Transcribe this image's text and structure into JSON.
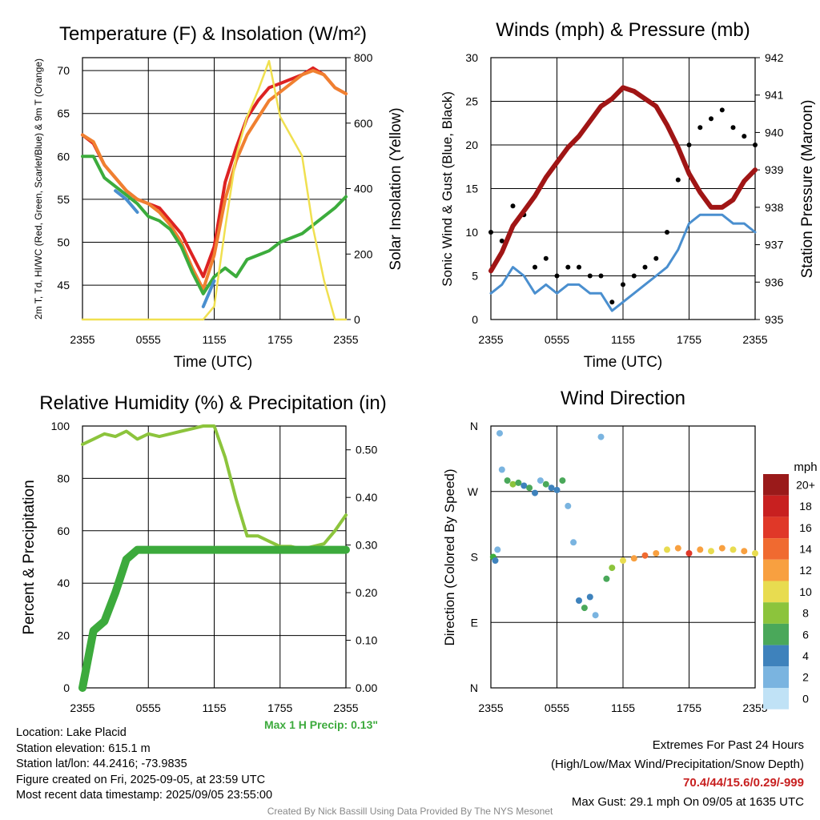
{
  "chart_data": [
    {
      "type": "line",
      "title": "Temperature (F) & Insolation (W/m²)",
      "xlabel": "Time (UTC)",
      "ylabel": "2m T, Td, HI/WC (Red, Green, Scarlet/Blue) & 9m T (Orange)",
      "y2label": "Solar Insolation (Yellow)",
      "xticks": [
        "2355",
        "0555",
        "1155",
        "1755",
        "2355"
      ],
      "yticks": [
        45,
        50,
        55,
        60,
        65,
        70
      ],
      "y2ticks": [
        0,
        200,
        400,
        600,
        800
      ],
      "ylim": [
        41,
        71.5
      ],
      "y2lim": [
        0,
        800
      ],
      "x_hours": [
        0,
        1,
        2,
        3,
        4,
        5,
        6,
        7,
        8,
        9,
        10,
        11,
        12,
        13,
        14,
        15,
        16,
        17,
        18,
        19,
        20,
        21,
        22,
        23,
        24
      ],
      "series": [
        {
          "color": "#dd2222",
          "values": [
            62.5,
            61.5,
            59,
            57.5,
            56,
            55,
            54.5,
            54,
            52.5,
            51,
            48.5,
            46,
            49.5,
            57,
            61,
            64.5,
            66.5,
            68,
            68.5,
            69,
            69.5,
            70.3,
            69.5,
            68,
            67.3
          ]
        },
        {
          "color": "#f08030",
          "values": [
            62.5,
            61.7,
            59,
            57.5,
            56,
            55,
            54.5,
            53.5,
            52,
            50,
            47,
            44.5,
            48.5,
            55,
            59.5,
            62.5,
            64.5,
            66.5,
            67.5,
            68.5,
            69.5,
            70,
            69.5,
            68,
            67.3
          ]
        },
        {
          "color": "#3cac3c",
          "values": [
            60,
            60,
            57.5,
            56.5,
            55.5,
            54.5,
            53,
            52.5,
            51.5,
            49.5,
            46.5,
            44,
            46,
            47,
            46,
            48,
            48.5,
            49,
            50,
            50.5,
            51,
            52,
            53,
            54,
            55.3
          ]
        },
        {
          "color": "#4a8fcf",
          "values": [
            null,
            null,
            null,
            56,
            55,
            53.5,
            null,
            null,
            null,
            null,
            null,
            42.5,
            45.5,
            null,
            null,
            null,
            null,
            null,
            null,
            null,
            null,
            null,
            null,
            null,
            null
          ]
        },
        {
          "color": "#f0e050",
          "y_axis": "right",
          "values": [
            0,
            0,
            0,
            0,
            0,
            0,
            0,
            0,
            0,
            0,
            0,
            0,
            40,
            280,
            500,
            620,
            700,
            790,
            620,
            560,
            500,
            280,
            120,
            0,
            0
          ]
        }
      ]
    },
    {
      "type": "scatter",
      "title": "Winds (mph) & Pressure (mb)",
      "xlabel": "Time (UTC)",
      "ylabel": "Sonic Wind & Gust (Blue, Black)",
      "y2label": "Station Pressure (Maroon)",
      "xticks": [
        "2355",
        "0555",
        "1155",
        "1755",
        "2355"
      ],
      "yticks": [
        0,
        5,
        10,
        15,
        20,
        25,
        30
      ],
      "y2ticks": [
        935,
        936,
        937,
        938,
        939,
        940,
        941,
        942
      ],
      "ylim": [
        0,
        30
      ],
      "y2lim": [
        935,
        942
      ],
      "x_hours": [
        0,
        1,
        2,
        3,
        4,
        5,
        6,
        7,
        8,
        9,
        10,
        11,
        12,
        13,
        14,
        15,
        16,
        17,
        18,
        19,
        20,
        21,
        22,
        23,
        24
      ],
      "series": [
        {
          "color": "#4a8fcf",
          "values": [
            3,
            4,
            6,
            5,
            3,
            4,
            3,
            4,
            4,
            3,
            3,
            1,
            2,
            3,
            4,
            5,
            6,
            8,
            11,
            12,
            12,
            12,
            11,
            11,
            10
          ]
        },
        {
          "color": "#000000",
          "values": [
            10,
            9,
            13,
            12,
            6,
            7,
            5,
            6,
            6,
            5,
            5,
            2,
            4,
            5,
            6,
            7,
            10,
            16,
            20,
            22,
            23,
            24,
            22,
            21,
            20
          ]
        },
        {
          "color": "#a01515",
          "y_axis": "right",
          "values": [
            936.3,
            936.8,
            937.5,
            937.9,
            938.3,
            938.8,
            939.2,
            939.6,
            939.9,
            940.3,
            940.7,
            940.9,
            941.2,
            941.1,
            940.9,
            940.7,
            940.2,
            939.6,
            938.9,
            938.4,
            938.0,
            938.0,
            938.2,
            938.7,
            939.0
          ]
        }
      ]
    },
    {
      "type": "line",
      "title": "Relative Humidity (%) & Precipitation (in)",
      "ylabel": "Percent & Precipitation",
      "xticks": [
        "2355",
        "0555",
        "1155",
        "1755",
        "2355"
      ],
      "yticks": [
        0,
        20,
        40,
        60,
        80,
        100
      ],
      "y2ticks": [
        "0.00",
        "0.10",
        "0.20",
        "0.30",
        "0.40",
        "0.50"
      ],
      "ylim": [
        0,
        100
      ],
      "y2lim": [
        0,
        0.55
      ],
      "x_hours": [
        0,
        1,
        2,
        3,
        4,
        5,
        6,
        7,
        8,
        9,
        10,
        11,
        12,
        13,
        14,
        15,
        16,
        17,
        18,
        19,
        20,
        21,
        22,
        23,
        24
      ],
      "series": [
        {
          "color": "#8cc43c",
          "values": [
            93,
            95,
            97,
            96,
            98,
            95,
            97,
            96,
            97,
            98,
            99,
            100,
            100,
            88,
            72,
            58,
            58,
            56,
            54,
            54,
            53,
            54,
            55,
            60,
            66
          ]
        },
        {
          "color": "#3caa3c",
          "y_axis": "right",
          "values": [
            0,
            0.12,
            0.14,
            0.2,
            0.27,
            0.29,
            0.29,
            0.29,
            0.29,
            0.29,
            0.29,
            0.29,
            0.29,
            0.29,
            0.29,
            0.29,
            0.29,
            0.29,
            0.29,
            0.29,
            0.29,
            0.29,
            0.29,
            0.29,
            0.29
          ]
        }
      ],
      "annotation": "Max 1 H Precip: 0.13\""
    },
    {
      "type": "scatter",
      "title": "Wind Direction",
      "ylabel": "Direction (Colored By Speed)",
      "xticks": [
        "2355",
        "0555",
        "1155",
        "1755",
        "2355"
      ],
      "yticks": [
        "N",
        "E",
        "S",
        "W",
        "N"
      ],
      "ylim": [
        0,
        360
      ],
      "colorbar_title": "mph",
      "colorbar_labels": [
        "20+",
        "18",
        "16",
        "14",
        "12",
        "10",
        "8",
        "6",
        "4",
        "2",
        "0"
      ],
      "colorbar_colors": [
        "#9a1a1a",
        "#c82020",
        "#e03828",
        "#f06a30",
        "#f8a040",
        "#e8dc50",
        "#8cc43c",
        "#4aa85a",
        "#3e82bc",
        "#7ab4e0",
        "#c0e2f6"
      ],
      "points": [
        [
          0.2,
          180,
          "#3cac3c"
        ],
        [
          0.4,
          175,
          "#3e82bc"
        ],
        [
          0.6,
          190,
          "#7ab4e0"
        ],
        [
          0.8,
          350,
          "#7ab4e0"
        ],
        [
          1.0,
          300,
          "#7ab4e0"
        ],
        [
          1.5,
          285,
          "#4aa85a"
        ],
        [
          2.0,
          280,
          "#8cc43c"
        ],
        [
          2.5,
          282,
          "#4aa85a"
        ],
        [
          3.0,
          278,
          "#3e82bc"
        ],
        [
          3.5,
          275,
          "#4aa85a"
        ],
        [
          4.0,
          268,
          "#3e82bc"
        ],
        [
          4.5,
          285,
          "#7ab4e0"
        ],
        [
          5.0,
          280,
          "#4aa85a"
        ],
        [
          5.5,
          275,
          "#3e82bc"
        ],
        [
          6.0,
          272,
          "#3e82bc"
        ],
        [
          6.5,
          285,
          "#4aa85a"
        ],
        [
          7.0,
          250,
          "#7ab4e0"
        ],
        [
          7.5,
          200,
          "#7ab4e0"
        ],
        [
          8.0,
          120,
          "#3e82bc"
        ],
        [
          8.5,
          110,
          "#4aa85a"
        ],
        [
          9.0,
          125,
          "#3e82bc"
        ],
        [
          9.5,
          100,
          "#7ab4e0"
        ],
        [
          10.0,
          345,
          "#7ab4e0"
        ],
        [
          10.5,
          150,
          "#4aa85a"
        ],
        [
          11.0,
          165,
          "#8cc43c"
        ],
        [
          12.0,
          175,
          "#e8dc50"
        ],
        [
          13.0,
          178,
          "#f8a040"
        ],
        [
          14.0,
          182,
          "#f06a30"
        ],
        [
          15.0,
          185,
          "#f8a040"
        ],
        [
          16.0,
          190,
          "#e8dc50"
        ],
        [
          17.0,
          192,
          "#f8a040"
        ],
        [
          18.0,
          185,
          "#e03828"
        ],
        [
          19.0,
          190,
          "#f8a040"
        ],
        [
          20.0,
          188,
          "#e8dc50"
        ],
        [
          21.0,
          192,
          "#f8a040"
        ],
        [
          22.0,
          190,
          "#e8dc50"
        ],
        [
          23.0,
          188,
          "#f8a040"
        ],
        [
          24.0,
          185,
          "#e8dc50"
        ]
      ]
    }
  ],
  "footer": {
    "location": "Location: Lake Placid",
    "elevation": "Station elevation: 615.1 m",
    "latlon": "Station lat/lon: 44.2416; -73.9835",
    "created": "Figure created on Fri, 2025-09-05, at 23:59 UTC",
    "recent": "Most recent data timestamp: 2025/09/05 23:55:00",
    "extremes_title": "Extremes For Past 24 Hours",
    "extremes_legend": "(High/Low/Max Wind/Precipitation/Snow Depth)",
    "extremes_values": "70.4/44/15.6/0.29/-999",
    "max_gust": "Max Gust: 29.1 mph On 09/05 at 1635 UTC",
    "credit": "Created By Nick Bassill Using Data Provided By The NYS Mesonet"
  }
}
